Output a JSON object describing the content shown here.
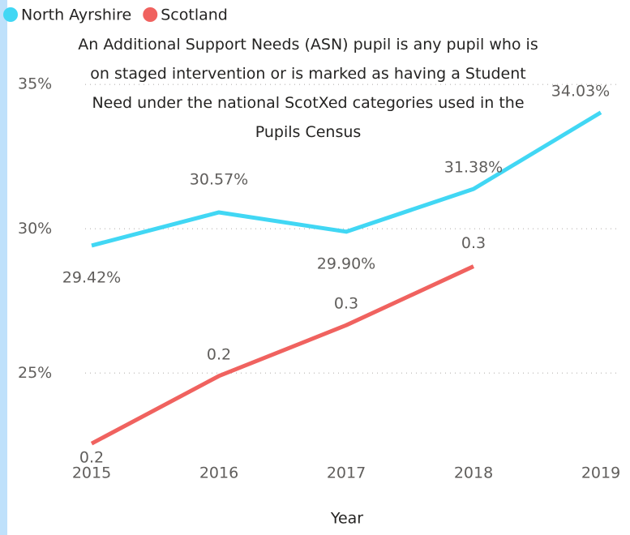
{
  "chart_data": {
    "type": "line",
    "annotation": "An Additional Support Needs (ASN) pupil is any pupil who is on staged intervention or is marked as having a Student Need under the national ScotXed categories used in the Pupils Census",
    "x_label": "Year",
    "categories": [
      "2015",
      "2016",
      "2017",
      "2018",
      "2019"
    ],
    "series": [
      {
        "name": "North Ayrshire",
        "color": "#41d7f4",
        "values": [
          29.42,
          30.57,
          29.9,
          31.38,
          34.03
        ],
        "value_labels": [
          "29.42%",
          "30.57%",
          "29.90%",
          "31.38%",
          "34.03%"
        ]
      },
      {
        "name": "Scotland",
        "color": "#f0625f",
        "values": [
          22.56,
          24.9,
          26.66,
          28.7,
          null
        ],
        "value_labels": [
          "0.2",
          "0.2",
          "0.3",
          "0.3",
          null
        ]
      }
    ],
    "ylim": [
      22.2,
      35.4
    ],
    "yticks": [
      {
        "value": 25,
        "label": "25%"
      },
      {
        "value": 30,
        "label": "30%"
      },
      {
        "value": 35,
        "label": "35%"
      }
    ],
    "grid": true,
    "legend": "top-left"
  }
}
